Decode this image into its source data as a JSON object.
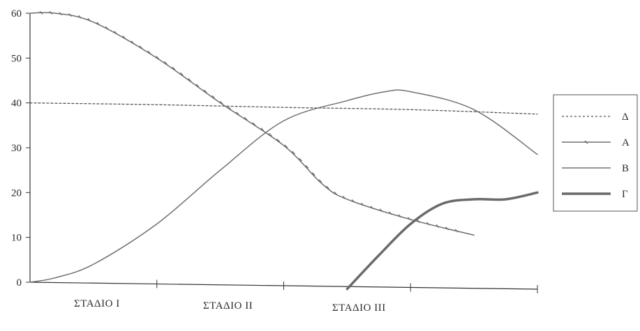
{
  "chart_data": {
    "type": "line",
    "title": "",
    "xlabel": "",
    "ylabel": "",
    "ylim": [
      0,
      60
    ],
    "y_ticks": [
      "0",
      "10",
      "20",
      "30",
      "40",
      "50",
      "60"
    ],
    "xlim": [
      0,
      4
    ],
    "categories": [
      "ΣΤΑΔΙΟ Ι",
      "ΣΤΑΔΙΟ ΙΙ",
      "ΣΤΑΔΙΟ ΙΙΙ"
    ],
    "grid": false,
    "legend_position": "right",
    "series": [
      {
        "name": "Δ",
        "style": "dashed",
        "color": "#555555",
        "points": [
          [
            0,
            40
          ],
          [
            1,
            39.6
          ],
          [
            2,
            39
          ],
          [
            3,
            38.5
          ],
          [
            4,
            37.5
          ]
        ]
      },
      {
        "name": "A",
        "style": "solid-ticked",
        "color": "#6e6e6e",
        "points": [
          [
            0,
            60
          ],
          [
            0.2,
            60
          ],
          [
            0.5,
            58
          ],
          [
            1,
            50
          ],
          [
            1.5,
            40
          ],
          [
            2,
            30.5
          ],
          [
            2.3,
            22
          ],
          [
            2.5,
            18.5
          ],
          [
            3,
            14
          ],
          [
            3.5,
            10.5
          ]
        ]
      },
      {
        "name": "B",
        "style": "solid",
        "color": "#707070",
        "points": [
          [
            0,
            0
          ],
          [
            0.2,
            1
          ],
          [
            0.5,
            4
          ],
          [
            1,
            13
          ],
          [
            1.5,
            25
          ],
          [
            2,
            36
          ],
          [
            2.5,
            40.5
          ],
          [
            2.8,
            42.5
          ],
          [
            3,
            42.5
          ],
          [
            3.5,
            38.5
          ],
          [
            4,
            28.5
          ]
        ]
      },
      {
        "name": "Γ",
        "style": "thick",
        "color": "#6a6a6a",
        "points": [
          [
            2.5,
            -1.5
          ],
          [
            2.75,
            6
          ],
          [
            3,
            13
          ],
          [
            3.25,
            17.5
          ],
          [
            3.5,
            18.5
          ],
          [
            3.75,
            18.5
          ],
          [
            4,
            20
          ]
        ]
      }
    ]
  }
}
